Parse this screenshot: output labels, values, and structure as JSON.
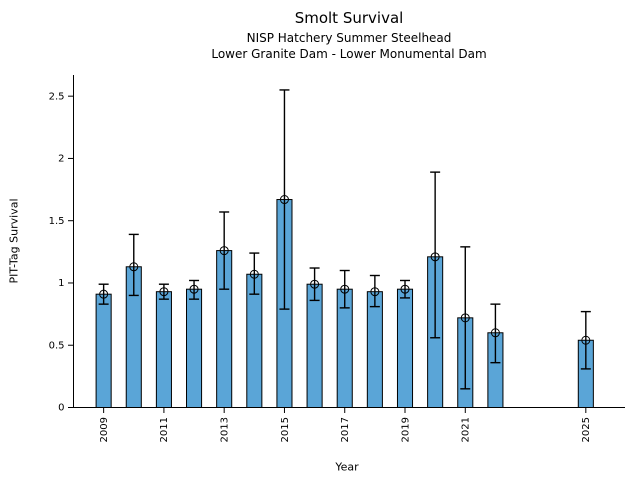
{
  "header": {
    "title": "Smolt Survival",
    "subtitle1": "NISP Hatchery Summer Steelhead",
    "subtitle2": "Lower Granite Dam - Lower Monumental Dam"
  },
  "chart_data": {
    "type": "bar",
    "title": "Smolt Survival",
    "subtitle1": "NISP Hatchery Summer Steelhead",
    "subtitle2": "Lower Granite Dam - Lower Monumental Dam",
    "xlabel": "Year",
    "ylabel": "PIT-Tag Survival",
    "categories": [
      2009,
      2010,
      2011,
      2012,
      2013,
      2014,
      2015,
      2016,
      2017,
      2018,
      2019,
      2020,
      2021,
      2022,
      2025
    ],
    "series": [
      {
        "name": "PIT-Tag Survival",
        "values": [
          0.91,
          1.13,
          0.93,
          0.95,
          1.26,
          1.07,
          1.67,
          0.99,
          0.95,
          0.93,
          0.95,
          1.21,
          0.72,
          0.6,
          0.54
        ],
        "error_low": [
          0.83,
          0.9,
          0.87,
          0.87,
          0.95,
          0.91,
          0.79,
          0.86,
          0.8,
          0.81,
          0.88,
          0.56,
          0.15,
          0.36,
          0.31
        ],
        "error_high": [
          0.99,
          1.39,
          0.99,
          1.02,
          1.57,
          1.24,
          2.55,
          1.12,
          1.1,
          1.06,
          1.02,
          1.89,
          1.29,
          0.83,
          0.77
        ]
      }
    ],
    "xticks": [
      2009,
      2011,
      2013,
      2015,
      2017,
      2019,
      2021,
      2025
    ],
    "xtick_labels": [
      "2009",
      "2011",
      "2013",
      "2015",
      "2017",
      "2019",
      "2021",
      "2025"
    ],
    "yticks": [
      0,
      0.5,
      1,
      1.5,
      2,
      2.5
    ],
    "ytick_labels": [
      "0",
      "0.5",
      "1",
      "1.5",
      "2",
      "2.5"
    ],
    "xlim": [
      2008.0,
      2026.3
    ],
    "ylim": [
      0,
      2.67
    ],
    "grid": false,
    "legend": "none",
    "bar_width_years": 0.5,
    "bar_color": "#5AA5D7",
    "bar_edge_color": "#000000",
    "errorbar_color": "#000000",
    "marker": "open-circle",
    "axis_color": "#000000",
    "background_color": "#ffffff"
  }
}
